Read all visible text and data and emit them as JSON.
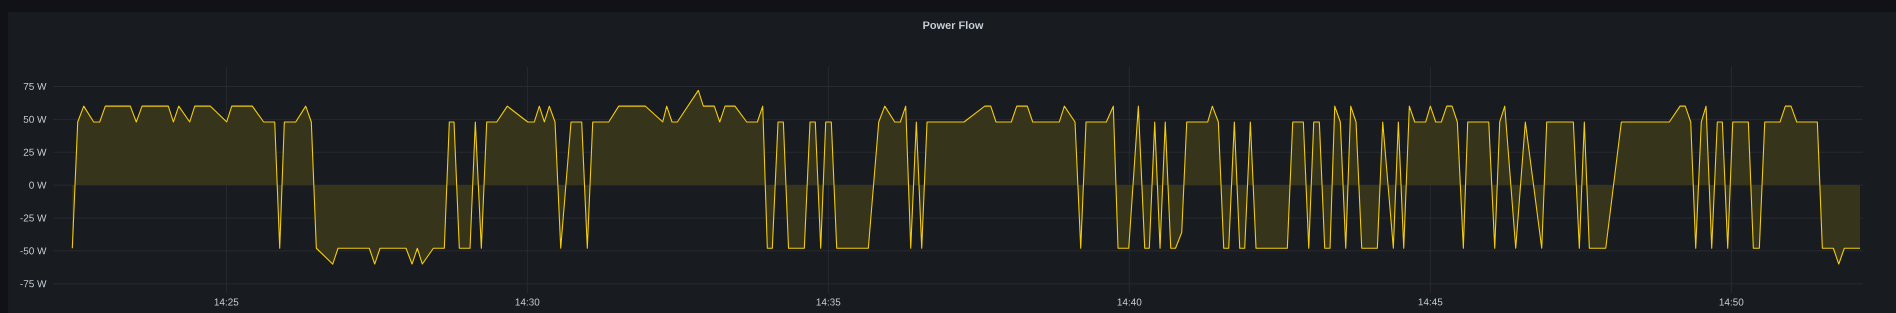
{
  "chart_data": {
    "type": "area",
    "title": "Power Flow",
    "color": "#f2cc0c",
    "grid": true,
    "xlim": [
      14.36869,
      14.86979
    ],
    "ylim": [
      -82,
      90
    ],
    "xticks": [
      {
        "value": 14.41667,
        "label": "14:25"
      },
      {
        "value": 14.5,
        "label": "14:30"
      },
      {
        "value": 14.58333,
        "label": "14:35"
      },
      {
        "value": 14.66667,
        "label": "14:40"
      },
      {
        "value": 14.75,
        "label": "14:45"
      },
      {
        "value": 14.83333,
        "label": "14:50"
      }
    ],
    "yticks": [
      {
        "value": -75,
        "label": "-75 W"
      },
      {
        "value": -50,
        "label": "-50 W"
      },
      {
        "value": -25,
        "label": "-25 W"
      },
      {
        "value": 0,
        "label": "0 W"
      },
      {
        "value": 25,
        "label": "25 W"
      },
      {
        "value": 50,
        "label": "50 W"
      },
      {
        "value": 75,
        "label": "75 W"
      }
    ],
    "x": [
      14.37403,
      14.37553,
      14.37719,
      14.37996,
      14.38162,
      14.38317,
      14.39009,
      14.39175,
      14.39333,
      14.40061,
      14.402,
      14.40349,
      14.40654,
      14.40792,
      14.41224,
      14.41678,
      14.41817,
      14.42387,
      14.42702,
      14.43007,
      14.43145,
      14.43273,
      14.43588,
      14.43865,
      14.4402,
      14.44159,
      14.44613,
      14.44759,
      14.45626,
      14.45775,
      14.45922,
      14.46642,
      14.46808,
      14.46955,
      14.47093,
      14.47398,
      14.47702,
      14.47841,
      14.47971,
      14.48118,
      14.48414,
      14.48561,
      14.48727,
      14.48876,
      14.49153,
      14.49446,
      14.50011,
      14.50194,
      14.50332,
      14.50471,
      14.50609,
      14.50767,
      14.50925,
      14.5121,
      14.51506,
      14.51661,
      14.51811,
      14.52254,
      14.52531,
      14.53267,
      14.53749,
      14.53859,
      14.54006,
      14.54153,
      14.54734,
      14.54873,
      14.55177,
      14.55327,
      14.55474,
      14.5575,
      14.56074,
      14.56368,
      14.56517,
      14.56645,
      14.56783,
      14.56941,
      14.57088,
      14.57232,
      14.57669,
      14.57827,
      14.57973,
      14.58123,
      14.58261,
      14.58416,
      14.58566,
      14.59441,
      14.59729,
      14.59895,
      14.60172,
      14.60327,
      14.60476,
      14.60615,
      14.6077,
      14.60919,
      14.61066,
      14.6209,
      14.62663,
      14.6283,
      14.62976,
      14.634,
      14.63549,
      14.63843,
      14.63992,
      14.64729,
      14.64867,
      14.65163,
      14.65321,
      14.65468,
      14.6603,
      14.66223,
      14.66354,
      14.6665,
      14.66916,
      14.67093,
      14.6722,
      14.6737,
      14.67517,
      14.67661,
      14.67813,
      14.67946,
      14.68117,
      14.68256,
      14.68837,
      14.68964,
      14.69131,
      14.6928,
      14.69418,
      14.69574,
      14.69723,
      14.69861,
      14.70017,
      14.70174,
      14.71041,
      14.7119,
      14.71484,
      14.71634,
      14.71772,
      14.71927,
      14.72076,
      14.72223,
      14.72353,
      14.72508,
      14.72658,
      14.72796,
      14.72943,
      14.73101,
      14.73533,
      14.73682,
      14.73976,
      14.74114,
      14.74263,
      14.74419,
      14.74568,
      14.74872,
      14.75,
      14.75149,
      14.75304,
      14.75454,
      14.75601,
      14.75747,
      14.75914,
      14.76035,
      14.76617,
      14.76783,
      14.76921,
      14.7706,
      14.77364,
      14.7763,
      14.78084,
      14.78222,
      14.78959,
      14.79125,
      14.79263,
      14.79402,
      14.79856,
      14.80288,
      14.81616,
      14.81913,
      14.82059,
      14.82209,
      14.82347,
      14.82502,
      14.82633,
      14.8279,
      14.82945,
      14.83084,
      14.83233,
      14.83372,
      14.83804,
      14.83942,
      14.84108,
      14.84258,
      14.84681,
      14.84828,
      14.84986,
      14.85144,
      14.85714,
      14.85853,
      14.86157,
      14.86307,
      14.86461,
      14.86896
    ],
    "values": [
      -48,
      48,
      60,
      48,
      48,
      60,
      60,
      48,
      60,
      60,
      48,
      60,
      48,
      60,
      60,
      48,
      60,
      60,
      48,
      48,
      -48,
      48,
      48,
      60,
      48,
      -48,
      -60,
      -48,
      -48,
      -60,
      -48,
      -48,
      -60,
      -48,
      -60,
      -48,
      -48,
      48,
      48,
      -48,
      -48,
      48,
      -48,
      48,
      48,
      60,
      48,
      48,
      60,
      48,
      60,
      48,
      -48,
      48,
      48,
      -48,
      48,
      48,
      60,
      60,
      48,
      60,
      48,
      48,
      72,
      60,
      60,
      48,
      60,
      60,
      48,
      48,
      60,
      -48,
      -48,
      48,
      48,
      -48,
      -48,
      48,
      48,
      -48,
      48,
      48,
      -48,
      -48,
      48,
      60,
      48,
      48,
      60,
      -48,
      48,
      -48,
      48,
      48,
      60,
      60,
      48,
      48,
      60,
      60,
      48,
      48,
      60,
      48,
      -48,
      48,
      48,
      60,
      -48,
      -48,
      60,
      -48,
      -48,
      48,
      -48,
      48,
      -48,
      -48,
      -36,
      48,
      48,
      60,
      48,
      -48,
      -48,
      48,
      -48,
      -48,
      48,
      -48,
      -48,
      48,
      48,
      -48,
      48,
      48,
      -48,
      -48,
      60,
      48,
      -48,
      60,
      48,
      -48,
      -48,
      48,
      -48,
      48,
      -48,
      60,
      48,
      48,
      60,
      48,
      48,
      60,
      60,
      48,
      -48,
      48,
      48,
      -48,
      48,
      60,
      -48,
      48,
      -48,
      48,
      48,
      -48,
      48,
      -48,
      -48,
      48,
      48,
      60,
      60,
      48,
      -48,
      48,
      60,
      -48,
      48,
      48,
      -48,
      48,
      48,
      -48,
      -48,
      48,
      48,
      60,
      60,
      48,
      48,
      -48,
      -48,
      -60,
      -48,
      -48
    ]
  }
}
